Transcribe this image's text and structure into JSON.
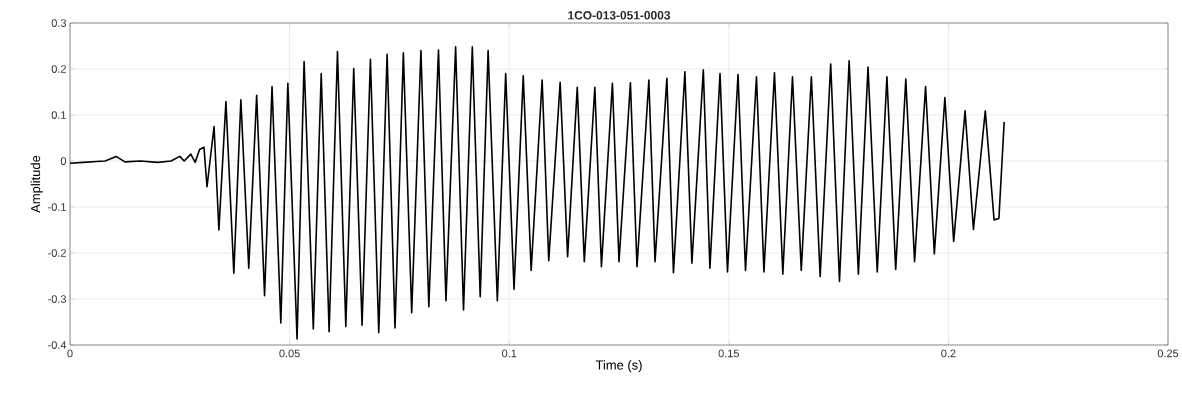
{
  "chart_data": {
    "type": "line",
    "title": "1CO-013-051-0003",
    "xlabel": "Time (s)",
    "ylabel": "Amplitude",
    "xlim": [
      0,
      0.25
    ],
    "ylim": [
      -0.4,
      0.3
    ],
    "xticks": [
      0,
      0.05,
      0.1,
      0.15,
      0.2,
      0.25
    ],
    "yticks": [
      -0.4,
      -0.3,
      -0.2,
      -0.1,
      0,
      0.1,
      0.2,
      0.3
    ],
    "grid": true,
    "series": [
      {
        "color": "#000000",
        "x": [
          0,
          0.003,
          0.006,
          0.008,
          0.0105,
          0.0125,
          0.016,
          0.02,
          0.023,
          0.025,
          0.026,
          0.0275,
          0.0285,
          0.0295,
          0.0305,
          0.0312,
          0.0328,
          0.0339,
          0.0355,
          0.0373,
          0.0389,
          0.0407,
          0.0425,
          0.0443,
          0.046,
          0.048,
          0.0496,
          0.0517,
          0.0533,
          0.0554,
          0.0572,
          0.059,
          0.0609,
          0.0628,
          0.0646,
          0.0665,
          0.0684,
          0.0703,
          0.0722,
          0.074,
          0.0759,
          0.0778,
          0.0799,
          0.0817,
          0.0839,
          0.0856,
          0.0878,
          0.0896,
          0.0916,
          0.0934,
          0.0952,
          0.0973,
          0.0992,
          0.1011,
          0.1032,
          0.105,
          0.1075,
          0.109,
          0.1116,
          0.1133,
          0.1155,
          0.1171,
          0.1195,
          0.121,
          0.1235,
          0.125,
          0.1276,
          0.1291,
          0.1318,
          0.1332,
          0.1359,
          0.1374,
          0.14,
          0.1416,
          0.1442,
          0.1457,
          0.148,
          0.1497,
          0.1521,
          0.1538,
          0.1563,
          0.158,
          0.1604,
          0.1623,
          0.1645,
          0.1665,
          0.1688,
          0.1708,
          0.1732,
          0.1752,
          0.1774,
          0.1795,
          0.1817,
          0.1838,
          0.186,
          0.188,
          0.1903,
          0.1923,
          0.1948,
          0.1968,
          0.1992,
          0.2012,
          0.2038,
          0.2057,
          0.2084,
          0.2104,
          0.2115,
          0.2127
        ],
        "values": [
          -0.005,
          -0.003,
          -0.001,
          0.0,
          0.01,
          -0.002,
          0.0,
          -0.003,
          0.0,
          0.01,
          0.0,
          0.015,
          -0.003,
          0.025,
          0.03,
          -0.056,
          0.075,
          -0.15,
          0.129,
          -0.244,
          0.133,
          -0.233,
          0.143,
          -0.293,
          0.162,
          -0.352,
          0.169,
          -0.387,
          0.216,
          -0.365,
          0.19,
          -0.371,
          0.238,
          -0.36,
          0.201,
          -0.357,
          0.221,
          -0.373,
          0.232,
          -0.363,
          0.235,
          -0.33,
          0.24,
          -0.317,
          0.241,
          -0.304,
          0.248,
          -0.324,
          0.248,
          -0.295,
          0.24,
          -0.304,
          0.19,
          -0.279,
          0.185,
          -0.238,
          0.176,
          -0.217,
          0.171,
          -0.208,
          0.16,
          -0.219,
          0.16,
          -0.23,
          0.169,
          -0.219,
          0.17,
          -0.23,
          0.176,
          -0.219,
          0.18,
          -0.243,
          0.194,
          -0.222,
          0.198,
          -0.233,
          0.19,
          -0.241,
          0.188,
          -0.238,
          0.183,
          -0.241,
          0.192,
          -0.246,
          0.183,
          -0.238,
          0.183,
          -0.251,
          0.211,
          -0.262,
          0.218,
          -0.246,
          0.204,
          -0.241,
          0.183,
          -0.236,
          0.178,
          -0.219,
          0.162,
          -0.202,
          0.138,
          -0.175,
          0.109,
          -0.149,
          0.109,
          -0.128,
          -0.125,
          0.085
        ]
      }
    ]
  }
}
